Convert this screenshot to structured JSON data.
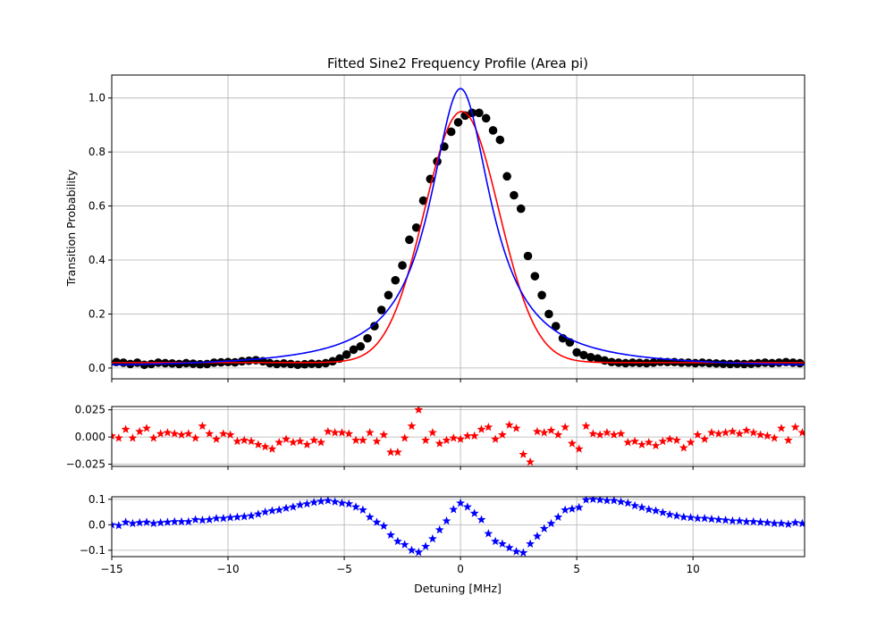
{
  "chart_data": {
    "type": "scatter",
    "title": "Fitted Sine2 Frequency Profile (Area pi)",
    "xlabel": "Detuning [MHz]",
    "xlim": [
      -15,
      14.8
    ],
    "grid": true,
    "x_ticks": [
      -15,
      -10,
      -5,
      0,
      5,
      10
    ],
    "x_tick_labels": [
      "−15",
      "−10",
      "−5",
      "0",
      "5",
      "10"
    ],
    "panels": [
      {
        "id": "main",
        "ylabel": "Transition Probability",
        "ylim": [
          -0.04,
          1.085
        ],
        "y_ticks": [
          0.0,
          0.2,
          0.4,
          0.6,
          0.8,
          1.0
        ],
        "y_tick_labels": [
          "0.0",
          "0.2",
          "0.4",
          "0.6",
          "0.8",
          "1.0"
        ],
        "series": [
          {
            "kind": "points",
            "color": "#000000",
            "x": [
              -14.8,
              -14.5,
              -14.2,
              -13.9,
              -13.6,
              -13.3,
              -13.0,
              -12.7,
              -12.4,
              -12.1,
              -11.8,
              -11.5,
              -11.2,
              -10.9,
              -10.6,
              -10.3,
              -10.0,
              -9.7,
              -9.4,
              -9.1,
              -8.8,
              -8.5,
              -8.2,
              -7.9,
              -7.6,
              -7.3,
              -7.0,
              -6.7,
              -6.4,
              -6.1,
              -5.8,
              -5.5,
              -5.2,
              -4.9,
              -4.6,
              -4.3,
              -4.0,
              -3.7,
              -3.4,
              -3.1,
              -2.8,
              -2.5,
              -2.2,
              -1.9,
              -1.6,
              -1.3,
              -1.0,
              -0.7,
              -0.4,
              -0.1,
              0.2,
              0.5,
              0.8,
              1.1,
              1.4,
              1.7,
              2.0,
              2.3,
              2.6,
              2.9,
              3.2,
              3.5,
              3.8,
              4.1,
              4.4,
              4.7,
              5.0,
              5.3,
              5.6,
              5.9,
              6.2,
              6.5,
              6.8,
              7.1,
              7.4,
              7.7,
              8.0,
              8.3,
              8.6,
              8.9,
              9.2,
              9.5,
              9.8,
              10.1,
              10.4,
              10.7,
              11.0,
              11.3,
              11.6,
              11.9,
              12.2,
              12.5,
              12.8,
              13.1,
              13.4,
              13.7,
              14.0,
              14.3,
              14.6
            ],
            "y": [
              0.022,
              0.02,
              0.015,
              0.02,
              0.012,
              0.015,
              0.02,
              0.018,
              0.017,
              0.015,
              0.018,
              0.016,
              0.014,
              0.015,
              0.02,
              0.021,
              0.022,
              0.021,
              0.025,
              0.027,
              0.029,
              0.025,
              0.018,
              0.015,
              0.017,
              0.015,
              0.012,
              0.014,
              0.016,
              0.015,
              0.018,
              0.025,
              0.035,
              0.05,
              0.068,
              0.08,
              0.11,
              0.155,
              0.215,
              0.27,
              0.325,
              0.38,
              0.475,
              0.52,
              0.62,
              0.7,
              0.765,
              0.82,
              0.875,
              0.91,
              0.935,
              0.945,
              0.945,
              0.925,
              0.88,
              0.845,
              0.71,
              0.64,
              0.59,
              0.415,
              0.34,
              0.27,
              0.2,
              0.155,
              0.11,
              0.095,
              0.058,
              0.048,
              0.04,
              0.035,
              0.028,
              0.022,
              0.02,
              0.018,
              0.02,
              0.019,
              0.018,
              0.02,
              0.023,
              0.022,
              0.022,
              0.02,
              0.02,
              0.018,
              0.02,
              0.018,
              0.017,
              0.016,
              0.015,
              0.016,
              0.015,
              0.016,
              0.018,
              0.02,
              0.018,
              0.02,
              0.022,
              0.02,
              0.018
            ]
          },
          {
            "kind": "line",
            "color": "#ff0000",
            "model": "gaussian",
            "offset": 0.02,
            "amplitude": 0.93,
            "center": 0.05,
            "sigma": 1.6
          },
          {
            "kind": "line",
            "color": "#0000ff",
            "model": "lorentzian",
            "offset": 0.0,
            "amplitude": 1.035,
            "center": 0.0,
            "gamma": 1.6
          }
        ]
      },
      {
        "id": "residual-red",
        "ylim": [
          -0.027,
          0.028
        ],
        "y_ticks": [
          -0.025,
          0.0,
          0.025
        ],
        "y_tick_labels": [
          "−0.025",
          "0.000",
          "0.025"
        ],
        "series": [
          {
            "kind": "stars",
            "color": "#ff0000",
            "x": [
              -15.0,
              -14.7,
              -14.4,
              -14.1,
              -13.8,
              -13.5,
              -13.2,
              -12.9,
              -12.6,
              -12.3,
              -12.0,
              -11.7,
              -11.4,
              -11.1,
              -10.8,
              -10.5,
              -10.2,
              -9.9,
              -9.6,
              -9.3,
              -9.0,
              -8.7,
              -8.4,
              -8.1,
              -7.8,
              -7.5,
              -7.2,
              -6.9,
              -6.6,
              -6.3,
              -6.0,
              -5.7,
              -5.4,
              -5.1,
              -4.8,
              -4.5,
              -4.2,
              -3.9,
              -3.6,
              -3.3,
              -3.0,
              -2.7,
              -2.4,
              -2.1,
              -1.8,
              -1.5,
              -1.2,
              -0.9,
              -0.6,
              -0.3,
              0.0,
              0.3,
              0.6,
              0.9,
              1.2,
              1.5,
              1.8,
              2.1,
              2.4,
              2.7,
              3.0,
              3.3,
              3.6,
              3.9,
              4.2,
              4.5,
              4.8,
              5.1,
              5.4,
              5.7,
              6.0,
              6.3,
              6.6,
              6.9,
              7.2,
              7.5,
              7.8,
              8.1,
              8.4,
              8.7,
              9.0,
              9.3,
              9.6,
              9.9,
              10.2,
              10.5,
              10.8,
              11.1,
              11.4,
              11.7,
              12.0,
              12.3,
              12.6,
              12.9,
              13.2,
              13.5,
              13.8,
              14.1,
              14.4,
              14.7
            ],
            "y": [
              0.001,
              -0.001,
              0.007,
              -0.001,
              0.005,
              0.008,
              -0.001,
              0.003,
              0.004,
              0.003,
              0.002,
              0.003,
              -0.001,
              0.01,
              0.003,
              -0.002,
              0.003,
              0.002,
              -0.004,
              -0.003,
              -0.004,
              -0.007,
              -0.009,
              -0.011,
              -0.005,
              -0.002,
              -0.005,
              -0.004,
              -0.007,
              -0.003,
              -0.005,
              0.005,
              0.004,
              0.004,
              0.003,
              -0.003,
              -0.003,
              0.004,
              -0.004,
              0.002,
              -0.014,
              -0.014,
              -0.001,
              0.01,
              0.025,
              -0.003,
              0.004,
              -0.006,
              -0.003,
              -0.001,
              -0.002,
              0.001,
              0.001,
              0.007,
              0.009,
              -0.002,
              0.002,
              0.011,
              0.008,
              -0.016,
              -0.023,
              0.005,
              0.004,
              0.006,
              0.002,
              0.009,
              -0.006,
              -0.011,
              0.01,
              0.003,
              0.002,
              0.004,
              0.002,
              0.003,
              -0.005,
              -0.004,
              -0.007,
              -0.005,
              -0.008,
              -0.004,
              -0.002,
              -0.003,
              -0.01,
              -0.005,
              0.002,
              -0.002,
              0.004,
              0.003,
              0.004,
              0.005,
              0.003,
              0.006,
              0.004,
              0.002,
              0.001,
              -0.001,
              0.008,
              -0.003,
              0.009,
              0.004
            ]
          }
        ]
      },
      {
        "id": "residual-blue",
        "ylim": [
          -0.125,
          0.11
        ],
        "y_ticks": [
          -0.1,
          0.0,
          0.1
        ],
        "y_tick_labels": [
          "−0.1",
          "0.0",
          "0.1"
        ],
        "series": [
          {
            "kind": "stars",
            "color": "#0000ff",
            "x": [
              -15.0,
              -14.7,
              -14.4,
              -14.1,
              -13.8,
              -13.5,
              -13.2,
              -12.9,
              -12.6,
              -12.3,
              -12.0,
              -11.7,
              -11.4,
              -11.1,
              -10.8,
              -10.5,
              -10.2,
              -9.9,
              -9.6,
              -9.3,
              -9.0,
              -8.7,
              -8.4,
              -8.1,
              -7.8,
              -7.5,
              -7.2,
              -6.9,
              -6.6,
              -6.3,
              -6.0,
              -5.7,
              -5.4,
              -5.1,
              -4.8,
              -4.5,
              -4.2,
              -3.9,
              -3.6,
              -3.3,
              -3.0,
              -2.7,
              -2.4,
              -2.1,
              -1.8,
              -1.5,
              -1.2,
              -0.9,
              -0.6,
              -0.3,
              0.0,
              0.3,
              0.6,
              0.9,
              1.2,
              1.5,
              1.8,
              2.1,
              2.4,
              2.7,
              3.0,
              3.3,
              3.6,
              3.9,
              4.2,
              4.5,
              4.8,
              5.1,
              5.4,
              5.7,
              6.0,
              6.3,
              6.6,
              6.9,
              7.2,
              7.5,
              7.8,
              8.1,
              8.4,
              8.7,
              9.0,
              9.3,
              9.6,
              9.9,
              10.2,
              10.5,
              10.8,
              11.1,
              11.4,
              11.7,
              12.0,
              12.3,
              12.6,
              12.9,
              13.2,
              13.5,
              13.8,
              14.1,
              14.4,
              14.7
            ],
            "y": [
              0.0,
              -0.003,
              0.01,
              0.005,
              0.008,
              0.01,
              0.005,
              0.008,
              0.01,
              0.012,
              0.012,
              0.012,
              0.02,
              0.018,
              0.02,
              0.025,
              0.025,
              0.028,
              0.03,
              0.032,
              0.035,
              0.042,
              0.05,
              0.055,
              0.058,
              0.065,
              0.07,
              0.078,
              0.082,
              0.088,
              0.092,
              0.095,
              0.09,
              0.085,
              0.082,
              0.07,
              0.058,
              0.03,
              0.01,
              -0.005,
              -0.04,
              -0.065,
              -0.078,
              -0.1,
              -0.108,
              -0.085,
              -0.055,
              -0.02,
              0.015,
              0.06,
              0.085,
              0.07,
              0.045,
              0.02,
              -0.035,
              -0.065,
              -0.075,
              -0.09,
              -0.105,
              -0.11,
              -0.075,
              -0.045,
              -0.015,
              0.005,
              0.03,
              0.058,
              0.062,
              0.068,
              0.098,
              0.1,
              0.098,
              0.095,
              0.095,
              0.09,
              0.085,
              0.075,
              0.068,
              0.06,
              0.055,
              0.048,
              0.04,
              0.035,
              0.03,
              0.028,
              0.025,
              0.025,
              0.022,
              0.02,
              0.018,
              0.015,
              0.015,
              0.012,
              0.012,
              0.01,
              0.008,
              0.005,
              0.005,
              0.002,
              0.008,
              0.005
            ]
          }
        ]
      }
    ]
  }
}
